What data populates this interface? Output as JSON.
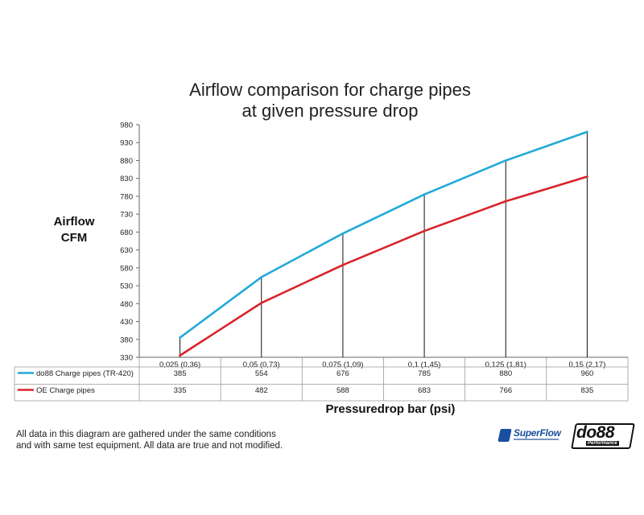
{
  "chart_data": {
    "type": "line",
    "title": [
      "Airflow comparison for charge pipes",
      "at given pressure drop"
    ],
    "ylabel": [
      "Airflow",
      "CFM"
    ],
    "xlabel": "Pressuredrop bar (psi)",
    "categories": [
      "0,025 (0,36)",
      "0,05 (0,73)",
      "0,075 (1,09)",
      "0,1 (1,45)",
      "0,125 (1,81)",
      "0,15 (2,17)"
    ],
    "y_ticks": [
      330,
      380,
      430,
      480,
      530,
      580,
      630,
      680,
      730,
      780,
      830,
      880,
      930,
      980
    ],
    "ylim": [
      330,
      980
    ],
    "grid": "vertical drop lines from upper series to x-axis",
    "legend": "data table below x-axis",
    "series": [
      {
        "name": "do88 Charge pipes (TR-420)",
        "color": "#22aad8",
        "values": [
          385,
          554,
          676,
          785,
          880,
          960
        ]
      },
      {
        "name": "OE Charge pipes",
        "color": "#d8232a",
        "values": [
          335,
          482,
          588,
          683,
          766,
          835
        ]
      }
    ]
  },
  "footnote": [
    "All data in this diagram are gathered under the same conditions",
    "and with same test equipment. All data are true and not modified."
  ],
  "logos": {
    "superflow": "SuperFlow",
    "do88": "do88",
    "do88_sub": "Performance"
  }
}
